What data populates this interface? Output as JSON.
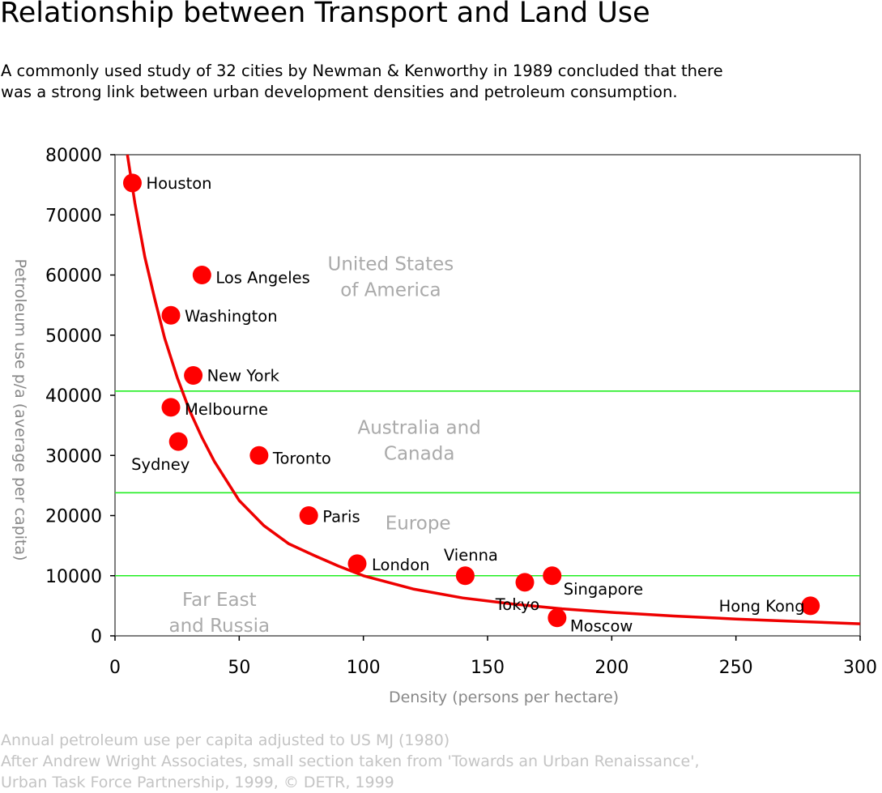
{
  "header": {
    "title": "Relationship between Transport and Land Use",
    "subtitle_lines": [
      "A commonly used study of 32 cities by Newman & Kenworthy in 1989 concluded that there",
      "was a strong link between urban development densities and petroleum consumption."
    ]
  },
  "footer": {
    "lines": [
      "Annual petroleum use per capita adjusted to US MJ (1980)",
      "After Andrew Wright Associates, small section taken from 'Towards an Urban Renaissance',",
      "Urban Task Force Partnership, 1999, © DETR, 1999"
    ]
  },
  "colors": {
    "points": "#ff0000",
    "curve": "#ee0000",
    "bands": "#22ee22",
    "region_text": "#aaaaaa",
    "axis_label": "#888888"
  },
  "chart_data": {
    "type": "scatter",
    "xlabel": "Density (persons per hectare)",
    "ylabel": "Petroleum use p/a (average per capita)",
    "xlim": [
      0,
      300
    ],
    "ylim": [
      0,
      80000
    ],
    "x_ticks": [
      0,
      50,
      100,
      150,
      200,
      250,
      300
    ],
    "y_ticks": [
      0,
      10000,
      20000,
      30000,
      40000,
      50000,
      60000,
      70000,
      80000
    ],
    "grid": false,
    "points": [
      {
        "label": "Houston",
        "x": 7,
        "y": 75300
      },
      {
        "label": "Los Angeles",
        "x": 35,
        "y": 60000
      },
      {
        "label": "Washington",
        "x": 22.5,
        "y": 53300
      },
      {
        "label": "New York",
        "x": 31.5,
        "y": 43300
      },
      {
        "label": "Melbourne",
        "x": 22.5,
        "y": 38000
      },
      {
        "label": "Sydney",
        "x": 25.5,
        "y": 32300
      },
      {
        "label": "Toronto",
        "x": 58,
        "y": 30000
      },
      {
        "label": "Paris",
        "x": 78,
        "y": 20000
      },
      {
        "label": "London",
        "x": 97.5,
        "y": 12000
      },
      {
        "label": "Vienna",
        "x": 141,
        "y": 10000
      },
      {
        "label": "Tokyo",
        "x": 165,
        "y": 8900
      },
      {
        "label": "Singapore",
        "x": 176,
        "y": 10000
      },
      {
        "label": "Moscow",
        "x": 178,
        "y": 3000
      },
      {
        "label": "Hong Kong",
        "x": 280,
        "y": 5000
      }
    ],
    "trend_curve": {
      "x": [
        5,
        8,
        12,
        16,
        20,
        25,
        30,
        35,
        40,
        50,
        60,
        70,
        80,
        90,
        100,
        120,
        140,
        160,
        180,
        200,
        225,
        250,
        275,
        300
      ],
      "y": [
        80000,
        72000,
        63000,
        56000,
        49500,
        43000,
        37500,
        33000,
        29000,
        22500,
        18300,
        15300,
        13400,
        11600,
        10000,
        7800,
        6300,
        5300,
        4500,
        3900,
        3300,
        2800,
        2400,
        2000
      ]
    },
    "bands": [
      {
        "y": 40700,
        "label": "United States of America",
        "label_lines": [
          "United States",
          "of America"
        ],
        "label_x": 111,
        "label_y": 60800
      },
      {
        "y": 23800,
        "label": "Australia and Canada",
        "label_lines": [
          "Australia and",
          "Canada"
        ],
        "label_x": 122.5,
        "label_y": 33600
      },
      {
        "y": 10000,
        "label": "Europe",
        "label_lines": [
          "Europe"
        ],
        "label_x": 122,
        "label_y": 17700
      },
      {
        "label": "Far East and Russia",
        "label_lines": [
          "Far East",
          "and Russia"
        ],
        "label_x": 42,
        "label_y": 5000
      }
    ]
  }
}
